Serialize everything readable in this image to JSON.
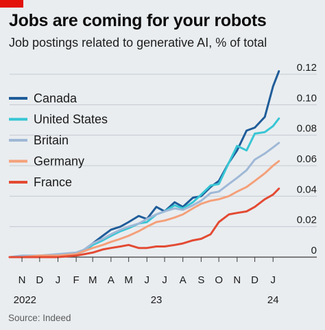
{
  "header": {
    "title": "Jobs are coming for your robots",
    "subtitle": "Job postings related to generative AI, % of total"
  },
  "source": "Source: Indeed",
  "colors": {
    "accent": "#e3120b",
    "background": "#e9edf0",
    "Canada": "#1f5c99",
    "United States": "#37c6d4",
    "Britain": "#9fb8d6",
    "Germany": "#f4a07a",
    "France": "#e34a33"
  },
  "chart_data": {
    "type": "line",
    "title": "Jobs are coming for your robots",
    "subtitle": "Job postings related to generative AI, % of total",
    "ylim": [
      0,
      0.12
    ],
    "y_ticks": [
      "0.12",
      "0.10",
      "0.08",
      "0.06",
      "0.04",
      "0.02",
      "0"
    ],
    "y_tick_values": [
      0.12,
      0.1,
      0.08,
      0.06,
      0.04,
      0.02,
      0
    ],
    "x_start": "2022-10-25",
    "x_end": "2024-01-31",
    "x_ticks": [
      {
        "label": "N",
        "date": "2022-11-15"
      },
      {
        "label": "D",
        "date": "2022-12-15"
      },
      {
        "label": "J",
        "date": "2023-01-15"
      },
      {
        "label": "F",
        "date": "2023-02-15"
      },
      {
        "label": "M",
        "date": "2023-03-15"
      },
      {
        "label": "A",
        "date": "2023-04-15"
      },
      {
        "label": "M",
        "date": "2023-05-15"
      },
      {
        "label": "J",
        "date": "2023-06-15"
      },
      {
        "label": "J",
        "date": "2023-07-15"
      },
      {
        "label": "A",
        "date": "2023-08-15"
      },
      {
        "label": "S",
        "date": "2023-09-15"
      },
      {
        "label": "O",
        "date": "2023-10-15"
      },
      {
        "label": "N",
        "date": "2023-11-15"
      },
      {
        "label": "D",
        "date": "2023-12-15"
      },
      {
        "label": "J",
        "date": "2024-01-15"
      }
    ],
    "year_labels": [
      {
        "label": "2022",
        "date": "2022-11-20"
      },
      {
        "label": "23",
        "date": "2023-07-01"
      },
      {
        "label": "24",
        "date": "2024-01-15"
      }
    ],
    "legend": [
      "Canada",
      "United States",
      "Britain",
      "Germany",
      "France"
    ],
    "legend_position": "left",
    "grid": true,
    "series": [
      {
        "name": "Canada",
        "color": "#1f5c99",
        "x": [
          "2022-10-25",
          "2022-11-15",
          "2022-12-15",
          "2023-01-15",
          "2023-02-15",
          "2023-03-01",
          "2023-03-15",
          "2023-04-01",
          "2023-04-15",
          "2023-05-01",
          "2023-05-15",
          "2023-06-01",
          "2023-06-15",
          "2023-07-01",
          "2023-07-15",
          "2023-08-01",
          "2023-08-15",
          "2023-09-01",
          "2023-09-15",
          "2023-10-01",
          "2023-10-15",
          "2023-11-01",
          "2023-11-15",
          "2023-12-01",
          "2023-12-15",
          "2024-01-01",
          "2024-01-15",
          "2024-01-25"
        ],
        "values": [
          0.0,
          0.0,
          0.0,
          0.001,
          0.002,
          0.005,
          0.009,
          0.014,
          0.018,
          0.02,
          0.023,
          0.027,
          0.025,
          0.033,
          0.03,
          0.036,
          0.033,
          0.039,
          0.04,
          0.046,
          0.05,
          0.062,
          0.07,
          0.083,
          0.085,
          0.092,
          0.112,
          0.122
        ]
      },
      {
        "name": "United States",
        "color": "#37c6d4",
        "x": [
          "2022-10-25",
          "2022-11-15",
          "2022-12-15",
          "2023-01-15",
          "2023-02-15",
          "2023-03-01",
          "2023-03-15",
          "2023-04-01",
          "2023-04-15",
          "2023-05-01",
          "2023-05-15",
          "2023-06-01",
          "2023-06-15",
          "2023-07-01",
          "2023-07-15",
          "2023-08-01",
          "2023-08-15",
          "2023-09-01",
          "2023-09-15",
          "2023-10-01",
          "2023-10-15",
          "2023-11-01",
          "2023-11-15",
          "2023-12-01",
          "2023-12-15",
          "2024-01-01",
          "2024-01-15",
          "2024-01-25"
        ],
        "values": [
          0.0,
          0.0,
          0.001,
          0.001,
          0.002,
          0.004,
          0.008,
          0.011,
          0.014,
          0.017,
          0.019,
          0.022,
          0.023,
          0.028,
          0.03,
          0.034,
          0.032,
          0.036,
          0.041,
          0.047,
          0.048,
          0.062,
          0.073,
          0.07,
          0.081,
          0.082,
          0.086,
          0.091
        ]
      },
      {
        "name": "Britain",
        "color": "#9fb8d6",
        "x": [
          "2022-10-25",
          "2022-11-15",
          "2022-12-15",
          "2023-01-15",
          "2023-02-15",
          "2023-03-01",
          "2023-03-15",
          "2023-04-01",
          "2023-04-15",
          "2023-05-01",
          "2023-05-15",
          "2023-06-01",
          "2023-06-15",
          "2023-07-01",
          "2023-07-15",
          "2023-08-01",
          "2023-08-15",
          "2023-09-01",
          "2023-09-15",
          "2023-10-01",
          "2023-10-15",
          "2023-11-01",
          "2023-11-15",
          "2023-12-01",
          "2023-12-15",
          "2024-01-01",
          "2024-01-15",
          "2024-01-25"
        ],
        "values": [
          0.0,
          0.001,
          0.001,
          0.002,
          0.003,
          0.005,
          0.009,
          0.012,
          0.015,
          0.018,
          0.02,
          0.022,
          0.025,
          0.028,
          0.03,
          0.032,
          0.031,
          0.034,
          0.037,
          0.042,
          0.043,
          0.048,
          0.052,
          0.057,
          0.064,
          0.068,
          0.072,
          0.075
        ]
      },
      {
        "name": "Germany",
        "color": "#f4a07a",
        "x": [
          "2022-10-25",
          "2022-11-15",
          "2022-12-15",
          "2023-01-15",
          "2023-02-15",
          "2023-03-01",
          "2023-03-15",
          "2023-04-01",
          "2023-04-15",
          "2023-05-01",
          "2023-05-15",
          "2023-06-01",
          "2023-06-15",
          "2023-07-01",
          "2023-07-15",
          "2023-08-01",
          "2023-08-15",
          "2023-09-01",
          "2023-09-15",
          "2023-10-01",
          "2023-10-15",
          "2023-11-01",
          "2023-11-15",
          "2023-12-01",
          "2023-12-15",
          "2024-01-01",
          "2024-01-15",
          "2024-01-25"
        ],
        "values": [
          0.0,
          0.0,
          0.001,
          0.001,
          0.002,
          0.004,
          0.006,
          0.008,
          0.01,
          0.012,
          0.014,
          0.017,
          0.02,
          0.023,
          0.024,
          0.026,
          0.028,
          0.032,
          0.035,
          0.037,
          0.038,
          0.04,
          0.043,
          0.046,
          0.05,
          0.055,
          0.06,
          0.063
        ]
      },
      {
        "name": "France",
        "color": "#e34a33",
        "x": [
          "2022-10-25",
          "2022-11-15",
          "2022-12-15",
          "2023-01-15",
          "2023-02-15",
          "2023-03-01",
          "2023-03-15",
          "2023-04-01",
          "2023-04-15",
          "2023-05-01",
          "2023-05-15",
          "2023-06-01",
          "2023-06-15",
          "2023-07-01",
          "2023-07-15",
          "2023-08-01",
          "2023-08-15",
          "2023-09-01",
          "2023-09-15",
          "2023-10-01",
          "2023-10-15",
          "2023-11-01",
          "2023-11-15",
          "2023-12-01",
          "2023-12-15",
          "2024-01-01",
          "2024-01-15",
          "2024-01-25"
        ],
        "values": [
          0.0,
          0.0,
          0.0,
          0.0,
          0.001,
          0.002,
          0.003,
          0.005,
          0.006,
          0.007,
          0.008,
          0.006,
          0.006,
          0.007,
          0.007,
          0.008,
          0.009,
          0.011,
          0.012,
          0.015,
          0.023,
          0.028,
          0.029,
          0.03,
          0.033,
          0.038,
          0.041,
          0.045
        ]
      }
    ]
  }
}
